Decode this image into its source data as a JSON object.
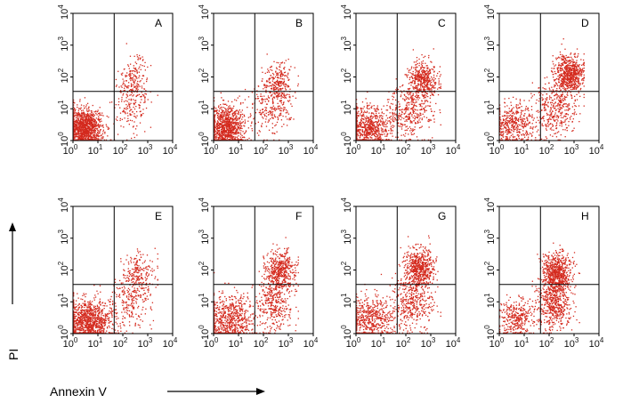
{
  "figure": {
    "xlabel": "Annexin V",
    "ylabel": "PI",
    "dot_color": "#d42a1e",
    "axis_color": "#000000"
  },
  "chart_data": [
    {
      "type": "scatter",
      "panel": "A",
      "xscale": "log",
      "yscale": "log",
      "xlim": [
        1,
        10000
      ],
      "ylim": [
        1,
        10000
      ],
      "x_ticks": [
        "10^0",
        "10^1",
        "10^2",
        "10^3",
        "10^4"
      ],
      "y_ticks": [
        "10^0",
        "10^1",
        "10^2",
        "10^3",
        "10^4"
      ],
      "quadrant_gate": {
        "x": 45,
        "y": 35
      },
      "populations": [
        {
          "name": "",
          "center": [
            3,
            2.5
          ],
          "spread": [
            0.35,
            0.3
          ],
          "weight": 0.78
        },
        {
          "name": "",
          "center": [
            300,
            80
          ],
          "spread": [
            0.3,
            0.35
          ],
          "weight": 0.12
        },
        {
          "name": "",
          "center": [
            200,
            12
          ],
          "spread": [
            0.35,
            0.4
          ],
          "weight": 0.1
        }
      ]
    },
    {
      "type": "scatter",
      "panel": "B",
      "xscale": "log",
      "yscale": "log",
      "xlim": [
        1,
        10000
      ],
      "ylim": [
        1,
        10000
      ],
      "x_ticks": [
        "10^0",
        "10^1",
        "10^2",
        "10^3",
        "10^4"
      ],
      "y_ticks": [
        "10^0",
        "10^1",
        "10^2",
        "10^3",
        "10^4"
      ],
      "quadrant_gate": {
        "x": 45,
        "y": 35
      },
      "populations": [
        {
          "name": "",
          "center": [
            3,
            2.5
          ],
          "spread": [
            0.4,
            0.35
          ],
          "weight": 0.68
        },
        {
          "name": "",
          "center": [
            400,
            60
          ],
          "spread": [
            0.3,
            0.35
          ],
          "weight": 0.18
        },
        {
          "name": "",
          "center": [
            200,
            10
          ],
          "spread": [
            0.4,
            0.4
          ],
          "weight": 0.14
        }
      ]
    },
    {
      "type": "scatter",
      "panel": "C",
      "xscale": "log",
      "yscale": "log",
      "xlim": [
        1,
        10000
      ],
      "ylim": [
        1,
        10000
      ],
      "x_ticks": [
        "10^0",
        "10^1",
        "10^2",
        "10^3",
        "10^4"
      ],
      "y_ticks": [
        "10^0",
        "10^1",
        "10^2",
        "10^3",
        "10^4"
      ],
      "quadrant_gate": {
        "x": 45,
        "y": 35
      },
      "populations": [
        {
          "name": "",
          "center": [
            3,
            2.5
          ],
          "spread": [
            0.45,
            0.35
          ],
          "weight": 0.45
        },
        {
          "name": "",
          "center": [
            500,
            80
          ],
          "spread": [
            0.3,
            0.3
          ],
          "weight": 0.3
        },
        {
          "name": "",
          "center": [
            150,
            8
          ],
          "spread": [
            0.45,
            0.45
          ],
          "weight": 0.25
        }
      ]
    },
    {
      "type": "scatter",
      "panel": "D",
      "xscale": "log",
      "yscale": "log",
      "xlim": [
        1,
        10000
      ],
      "ylim": [
        1,
        10000
      ],
      "x_ticks": [
        "10^0",
        "10^1",
        "10^2",
        "10^3",
        "10^4"
      ],
      "y_ticks": [
        "10^0",
        "10^1",
        "10^2",
        "10^3",
        "10^4"
      ],
      "quadrant_gate": {
        "x": 45,
        "y": 35
      },
      "populations": [
        {
          "name": "",
          "center": [
            4,
            3
          ],
          "spread": [
            0.45,
            0.35
          ],
          "weight": 0.3
        },
        {
          "name": "",
          "center": [
            600,
            120
          ],
          "spread": [
            0.3,
            0.3
          ],
          "weight": 0.45
        },
        {
          "name": "",
          "center": [
            200,
            10
          ],
          "spread": [
            0.45,
            0.45
          ],
          "weight": 0.25
        }
      ]
    },
    {
      "type": "scatter",
      "panel": "E",
      "xscale": "log",
      "yscale": "log",
      "xlim": [
        1,
        10000
      ],
      "ylim": [
        1,
        10000
      ],
      "x_ticks": [
        "10^0",
        "10^1",
        "10^2",
        "10^3",
        "10^4"
      ],
      "y_ticks": [
        "10^0",
        "10^1",
        "10^2",
        "10^3",
        "10^4"
      ],
      "quadrant_gate": {
        "x": 45,
        "y": 35
      },
      "populations": [
        {
          "name": "",
          "center": [
            4,
            2.5
          ],
          "spread": [
            0.5,
            0.35
          ],
          "weight": 0.72
        },
        {
          "name": "",
          "center": [
            400,
            70
          ],
          "spread": [
            0.35,
            0.35
          ],
          "weight": 0.14
        },
        {
          "name": "",
          "center": [
            200,
            10
          ],
          "spread": [
            0.4,
            0.4
          ],
          "weight": 0.14
        }
      ]
    },
    {
      "type": "scatter",
      "panel": "F",
      "xscale": "log",
      "yscale": "log",
      "xlim": [
        1,
        10000
      ],
      "ylim": [
        1,
        10000
      ],
      "x_ticks": [
        "10^0",
        "10^1",
        "10^2",
        "10^3",
        "10^4"
      ],
      "y_ticks": [
        "10^0",
        "10^1",
        "10^2",
        "10^3",
        "10^4"
      ],
      "quadrant_gate": {
        "x": 45,
        "y": 35
      },
      "populations": [
        {
          "name": "",
          "center": [
            4,
            3
          ],
          "spread": [
            0.5,
            0.4
          ],
          "weight": 0.45
        },
        {
          "name": "",
          "center": [
            500,
            100
          ],
          "spread": [
            0.3,
            0.3
          ],
          "weight": 0.3
        },
        {
          "name": "",
          "center": [
            300,
            10
          ],
          "spread": [
            0.35,
            0.45
          ],
          "weight": 0.25
        }
      ]
    },
    {
      "type": "scatter",
      "panel": "G",
      "xscale": "log",
      "yscale": "log",
      "xlim": [
        1,
        10000
      ],
      "ylim": [
        1,
        10000
      ],
      "x_ticks": [
        "10^0",
        "10^1",
        "10^2",
        "10^3",
        "10^4"
      ],
      "y_ticks": [
        "10^0",
        "10^1",
        "10^2",
        "10^3",
        "10^4"
      ],
      "quadrant_gate": {
        "x": 45,
        "y": 35
      },
      "populations": [
        {
          "name": "",
          "center": [
            4,
            3
          ],
          "spread": [
            0.45,
            0.35
          ],
          "weight": 0.35
        },
        {
          "name": "",
          "center": [
            350,
            120
          ],
          "spread": [
            0.3,
            0.3
          ],
          "weight": 0.38
        },
        {
          "name": "",
          "center": [
            200,
            10
          ],
          "spread": [
            0.4,
            0.45
          ],
          "weight": 0.27
        }
      ]
    },
    {
      "type": "scatter",
      "panel": "H",
      "xscale": "log",
      "yscale": "log",
      "xlim": [
        1,
        10000
      ],
      "ylim": [
        1,
        10000
      ],
      "x_ticks": [
        "10^0",
        "10^1",
        "10^2",
        "10^3",
        "10^4"
      ],
      "y_ticks": [
        "10^0",
        "10^1",
        "10^2",
        "10^3",
        "10^4"
      ],
      "quadrant_gate": {
        "x": 45,
        "y": 35
      },
      "populations": [
        {
          "name": "",
          "center": [
            5,
            3
          ],
          "spread": [
            0.35,
            0.3
          ],
          "weight": 0.22
        },
        {
          "name": "",
          "center": [
            200,
            80
          ],
          "spread": [
            0.3,
            0.35
          ],
          "weight": 0.45
        },
        {
          "name": "",
          "center": [
            150,
            8
          ],
          "spread": [
            0.35,
            0.4
          ],
          "weight": 0.33
        }
      ]
    }
  ]
}
